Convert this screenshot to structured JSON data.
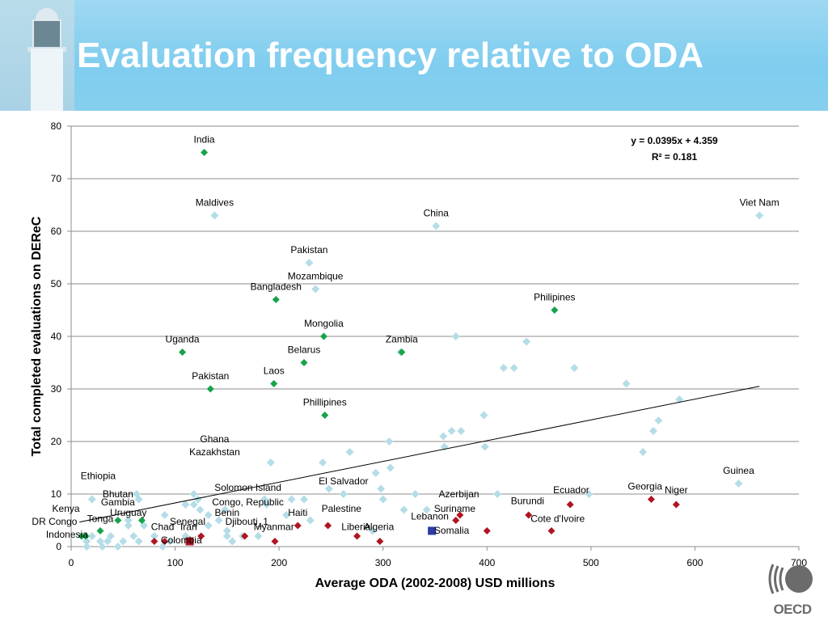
{
  "header": {
    "title": "Evaluation frequency relative to ODA"
  },
  "logo": {
    "text": "OECD"
  },
  "chart_data": {
    "type": "scatter",
    "title": "",
    "xlabel": "Average ODA (2002-2008)  USD millions",
    "ylabel": "Total completed evaluations on DEReC",
    "xlim": [
      0,
      700
    ],
    "ylim": [
      0,
      80
    ],
    "x_ticks": [
      0,
      100,
      200,
      300,
      400,
      500,
      600,
      700
    ],
    "y_ticks": [
      0,
      10,
      20,
      30,
      40,
      50,
      60,
      70,
      80
    ],
    "grid": "horizontal",
    "equation": "y = 0.0395x + 4.359",
    "r_squared": "R² = 0.181",
    "trendline": {
      "slope": 0.0395,
      "intercept": 4.359,
      "x_range": [
        8,
        662
      ]
    },
    "colors": {
      "light": "#b5dde7",
      "green": "#16a34a",
      "red": "#c0182b",
      "darkred": "#b01522",
      "blue": "#2b3aa6"
    },
    "series": [
      {
        "marker": "light-diamond",
        "points": [
          [
            138,
            63
          ],
          [
            662,
            63
          ],
          [
            351,
            61
          ],
          [
            229,
            54
          ],
          [
            235,
            49
          ],
          [
            370,
            40
          ],
          [
            438,
            39
          ],
          [
            317,
            37
          ],
          [
            416,
            34
          ],
          [
            426,
            34
          ],
          [
            484,
            34
          ],
          [
            534,
            31
          ],
          [
            585,
            28
          ],
          [
            397,
            25
          ],
          [
            565,
            24
          ],
          [
            560,
            22
          ],
          [
            366,
            22
          ],
          [
            375,
            22
          ],
          [
            358,
            21
          ],
          [
            398,
            19
          ],
          [
            359,
            19
          ],
          [
            550,
            18
          ],
          [
            306,
            20
          ],
          [
            268,
            18
          ],
          [
            192,
            16
          ],
          [
            242,
            16
          ],
          [
            307,
            15
          ],
          [
            293,
            14
          ],
          [
            248,
            11
          ],
          [
            298,
            11
          ],
          [
            262,
            10
          ],
          [
            63,
            10
          ],
          [
            118,
            10
          ],
          [
            331,
            10
          ],
          [
            410,
            10
          ],
          [
            498,
            10
          ],
          [
            642,
            12
          ],
          [
            20,
            9
          ],
          [
            65,
            9
          ],
          [
            110,
            8
          ],
          [
            122,
            9
          ],
          [
            186,
            9
          ],
          [
            212,
            9
          ],
          [
            224,
            9
          ],
          [
            300,
            9
          ],
          [
            188,
            8
          ],
          [
            118,
            8
          ],
          [
            124,
            7
          ],
          [
            148,
            7
          ],
          [
            320,
            7
          ],
          [
            342,
            7
          ],
          [
            207,
            6
          ],
          [
            132,
            6
          ],
          [
            90,
            6
          ],
          [
            55,
            5
          ],
          [
            55,
            4
          ],
          [
            70,
            4
          ],
          [
            132,
            4
          ],
          [
            142,
            5
          ],
          [
            150,
            3
          ],
          [
            230,
            5
          ],
          [
            165,
            2
          ],
          [
            180,
            2
          ],
          [
            290,
            3
          ],
          [
            20,
            2
          ],
          [
            38,
            2
          ],
          [
            60,
            2
          ],
          [
            80,
            2
          ],
          [
            110,
            2
          ],
          [
            150,
            2
          ],
          [
            15,
            1
          ],
          [
            28,
            1
          ],
          [
            35,
            1
          ],
          [
            50,
            1
          ],
          [
            65,
            1
          ],
          [
            95,
            1
          ],
          [
            155,
            1
          ],
          [
            15,
            0
          ],
          [
            30,
            0
          ],
          [
            45,
            0
          ],
          [
            88,
            0
          ]
        ]
      },
      {
        "marker": "green-diamond",
        "points": [
          [
            128,
            75
          ],
          [
            197,
            47
          ],
          [
            465,
            45
          ],
          [
            243,
            40
          ],
          [
            107,
            37
          ],
          [
            318,
            37
          ],
          [
            224,
            35
          ],
          [
            195,
            31
          ],
          [
            134,
            30
          ],
          [
            244,
            25
          ],
          [
            45,
            5
          ],
          [
            68,
            5
          ],
          [
            28,
            3
          ],
          [
            10,
            2
          ],
          [
            14,
            2
          ]
        ]
      },
      {
        "marker": "red-diamond",
        "points": [
          [
            558,
            9
          ],
          [
            582,
            8
          ],
          [
            480,
            8
          ],
          [
            440,
            6
          ],
          [
            374,
            6
          ],
          [
            370,
            5
          ],
          [
            462,
            3
          ],
          [
            400,
            3
          ],
          [
            218,
            4
          ],
          [
            247,
            4
          ],
          [
            167,
            2
          ],
          [
            125,
            2
          ],
          [
            275,
            2
          ],
          [
            80,
            1
          ],
          [
            90,
            1
          ],
          [
            196,
            1
          ],
          [
            297,
            1
          ]
        ]
      },
      {
        "marker": "red-square",
        "points": [
          [
            114,
            1
          ]
        ]
      },
      {
        "marker": "blue-square",
        "points": [
          [
            347,
            3
          ]
        ]
      }
    ],
    "labels": [
      {
        "text": "India",
        "x": 128,
        "y": 77.5
      },
      {
        "text": "Maldives",
        "x": 138,
        "y": 65.5
      },
      {
        "text": "China",
        "x": 351,
        "y": 63.5
      },
      {
        "text": "Viet Nam",
        "x": 662,
        "y": 65.5
      },
      {
        "text": "Pakistan",
        "x": 229,
        "y": 56.5
      },
      {
        "text": "Mozambique",
        "x": 235,
        "y": 51.5
      },
      {
        "text": "Bangladesh",
        "x": 197,
        "y": 49.5
      },
      {
        "text": "Philipines",
        "x": 465,
        "y": 47.5
      },
      {
        "text": "Mongolia",
        "x": 243,
        "y": 42.5
      },
      {
        "text": "Uganda",
        "x": 107,
        "y": 39.5
      },
      {
        "text": "Zambia",
        "x": 318,
        "y": 39.5
      },
      {
        "text": "Belarus",
        "x": 224,
        "y": 37.5
      },
      {
        "text": "Laos",
        "x": 195,
        "y": 33.5
      },
      {
        "text": "Pakistan",
        "x": 134,
        "y": 32.5
      },
      {
        "text": "Phillipines",
        "x": 244,
        "y": 27.5
      },
      {
        "text": "Ghana",
        "x": 138,
        "y": 20.5
      },
      {
        "text": "Kazakhstan",
        "x": 138,
        "y": 18
      },
      {
        "text": "Ethiopia",
        "x": 26,
        "y": 13.5
      },
      {
        "text": "Guinea",
        "x": 642,
        "y": 14.5
      },
      {
        "text": "El Salvador",
        "x": 262,
        "y": 12.5
      },
      {
        "text": "Georgia",
        "x": 552,
        "y": 11.5
      },
      {
        "text": "Niger",
        "x": 582,
        "y": 10.8
      },
      {
        "text": "Solomon Island",
        "x": 170,
        "y": 11.2
      },
      {
        "text": "Ecuador",
        "x": 481,
        "y": 10.8
      },
      {
        "text": "Azerbijan",
        "x": 373,
        "y": 10
      },
      {
        "text": "Bhutan",
        "x": 45,
        "y": 10
      },
      {
        "text": "Gambia",
        "x": 45,
        "y": 8.5
      },
      {
        "text": "Congo, Republic",
        "x": 170,
        "y": 8.5
      },
      {
        "text": "Burundi",
        "x": 439,
        "y": 8.7
      },
      {
        "text": "Kenya",
        "x": -5,
        "y": 7.2
      },
      {
        "text": "Suriname",
        "x": 369,
        "y": 7.2
      },
      {
        "text": "Palestine",
        "x": 260,
        "y": 7.2
      },
      {
        "text": "Uruguay",
        "x": 55,
        "y": 6.5
      },
      {
        "text": "Benin",
        "x": 150,
        "y": 6.5
      },
      {
        "text": "Haiti",
        "x": 218,
        "y": 6.5
      },
      {
        "text": "Lebanon",
        "x": 345,
        "y": 5.8
      },
      {
        "text": "Tonga",
        "x": 28,
        "y": 5.3
      },
      {
        "text": "Cote d'Ivoire",
        "x": 468,
        "y": 5.3
      },
      {
        "text": "DR Congo",
        "x": -16,
        "y": 4.8
      },
      {
        "text": "Senegal",
        "x": 112,
        "y": 4.8
      },
      {
        "text": "Djibouti_1",
        "x": 169,
        "y": 4.8
      },
      {
        "text": "Chad",
        "x": 88,
        "y": 3.8
      },
      {
        "text": "Iran",
        "x": 113,
        "y": 3.8
      },
      {
        "text": "Myanmar",
        "x": 195,
        "y": 3.8
      },
      {
        "text": "Liberia",
        "x": 274,
        "y": 3.8
      },
      {
        "text": "Algeria",
        "x": 296,
        "y": 3.8
      },
      {
        "text": "Somalia",
        "x": 366,
        "y": 3.1
      },
      {
        "text": "Indonesia",
        "x": -4,
        "y": 2.3
      },
      {
        "text": "Colombia",
        "x": 106,
        "y": 1.2
      }
    ]
  }
}
